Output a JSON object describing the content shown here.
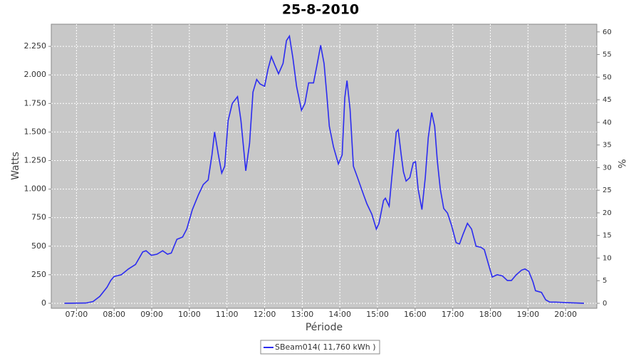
{
  "chart_data": {
    "type": "line",
    "title": "25-8-2010",
    "x_label": "Période",
    "y_label": "Watts",
    "y2_label": "%",
    "x": [
      6.68,
      7.25,
      7.44,
      7.62,
      7.81,
      7.91,
      8.0,
      8.19,
      8.38,
      8.57,
      8.76,
      8.85,
      8.99,
      9.14,
      9.29,
      9.42,
      9.52,
      9.67,
      9.82,
      9.93,
      10.08,
      10.24,
      10.37,
      10.5,
      10.6,
      10.67,
      10.77,
      10.86,
      10.94,
      11.03,
      11.14,
      11.28,
      11.37,
      11.5,
      11.6,
      11.69,
      11.79,
      11.88,
      12.0,
      12.09,
      12.18,
      12.28,
      12.37,
      12.49,
      12.58,
      12.66,
      12.75,
      12.85,
      12.98,
      13.07,
      13.17,
      13.3,
      13.4,
      13.49,
      13.58,
      13.66,
      13.72,
      13.83,
      13.96,
      14.06,
      14.13,
      14.19,
      14.27,
      14.36,
      14.47,
      14.63,
      14.72,
      14.85,
      14.97,
      15.04,
      15.16,
      15.21,
      15.31,
      15.38,
      15.5,
      15.55,
      15.63,
      15.69,
      15.76,
      15.86,
      15.95,
      16.01,
      16.08,
      16.18,
      16.27,
      16.35,
      16.44,
      16.52,
      16.59,
      16.67,
      16.76,
      16.86,
      16.97,
      17.09,
      17.18,
      17.27,
      17.39,
      17.5,
      17.62,
      17.75,
      17.84,
      17.96,
      18.05,
      18.18,
      18.32,
      18.45,
      18.56,
      18.69,
      18.83,
      18.92,
      19.02,
      19.13,
      19.2,
      19.36,
      19.47,
      19.58,
      19.73,
      20.02,
      20.3,
      20.49
    ],
    "series": [
      {
        "name": "SBeam014( 11,760 kWh )",
        "color": "#2b2bf0",
        "values": [
          0,
          2,
          15,
          60,
          140,
          200,
          235,
          250,
          300,
          340,
          450,
          460,
          420,
          430,
          460,
          430,
          440,
          560,
          580,
          650,
          820,
          950,
          1040,
          1080,
          1300,
          1500,
          1300,
          1140,
          1200,
          1600,
          1750,
          1810,
          1600,
          1160,
          1400,
          1850,
          1960,
          1920,
          1900,
          2050,
          2160,
          2080,
          2010,
          2100,
          2300,
          2340,
          2150,
          1900,
          1690,
          1750,
          1930,
          1930,
          2100,
          2260,
          2100,
          1800,
          1550,
          1370,
          1220,
          1300,
          1800,
          1950,
          1700,
          1200,
          1100,
          950,
          870,
          780,
          650,
          700,
          900,
          920,
          850,
          1100,
          1500,
          1520,
          1300,
          1150,
          1070,
          1100,
          1230,
          1240,
          1000,
          820,
          1100,
          1450,
          1670,
          1550,
          1250,
          1000,
          830,
          790,
          680,
          530,
          520,
          600,
          700,
          650,
          500,
          490,
          470,
          330,
          230,
          250,
          240,
          200,
          200,
          250,
          290,
          300,
          280,
          190,
          110,
          95,
          30,
          10,
          10,
          5,
          2,
          0
        ]
      }
    ],
    "xlim": [
      6.33,
      20.83
    ],
    "xticks": [
      {
        "value": 7,
        "label": "07:00"
      },
      {
        "value": 8,
        "label": "08:00"
      },
      {
        "value": 9,
        "label": "09:00"
      },
      {
        "value": 10,
        "label": "10:00"
      },
      {
        "value": 11,
        "label": "11:00"
      },
      {
        "value": 12,
        "label": "12:00"
      },
      {
        "value": 13,
        "label": "13:00"
      },
      {
        "value": 14,
        "label": "14:00"
      },
      {
        "value": 15,
        "label": "15:00"
      },
      {
        "value": 16,
        "label": "16:00"
      },
      {
        "value": 17,
        "label": "17:00"
      },
      {
        "value": 18,
        "label": "18:00"
      },
      {
        "value": 19,
        "label": "19:00"
      },
      {
        "value": 20,
        "label": "20:00"
      }
    ],
    "ylim": [
      -44,
      2444
    ],
    "yticks": [
      0,
      250,
      500,
      750,
      {
        "value": 1000,
        "label": "1.000"
      },
      {
        "value": 1250,
        "label": "1.250"
      },
      {
        "value": 1500,
        "label": "1.500"
      },
      {
        "value": 1750,
        "label": "1.750"
      },
      {
        "value": 2000,
        "label": "2.000"
      },
      {
        "value": 2250,
        "label": "2.250"
      }
    ],
    "y2lim": [
      -1.1,
      61.7
    ],
    "y2ticks": [
      0,
      5,
      10,
      15,
      20,
      25,
      30,
      35,
      40,
      45,
      50,
      55,
      60
    ],
    "grid": true
  }
}
